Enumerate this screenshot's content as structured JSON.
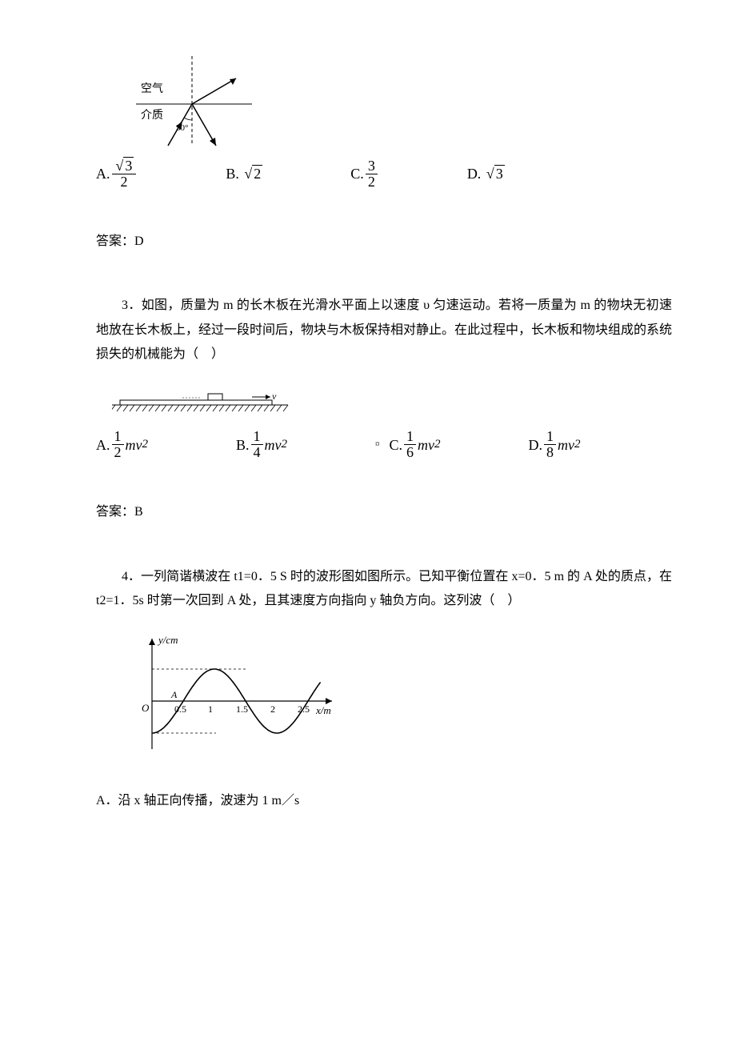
{
  "q2": {
    "diagram": {
      "air_label": "空气",
      "medium_label": "介质",
      "angle_label": "30°",
      "line_color": "#000000",
      "dash_pattern": "4 3"
    },
    "options": {
      "A": {
        "label": "A.",
        "numer": "√3",
        "denom": "2"
      },
      "B": {
        "label": "B.",
        "value": "√2"
      },
      "C": {
        "label": "C.",
        "numer": "3",
        "denom": "2"
      },
      "D": {
        "label": "D.",
        "value": "√3"
      }
    },
    "answer": "答案：D"
  },
  "q3": {
    "number": "3．",
    "text": "如图，质量为 m 的长木板在光滑水平面上以速度 υ 匀速运动。若将一质量为 m 的物块无初速地放在长木板上，经过一段时间后，物块与木板保持相对静止。在此过程中，长木板和物块组成的系统损失的机械能为（　）",
    "diagram": {
      "arrow_label": "v",
      "line_color": "#000000"
    },
    "options": {
      "A": {
        "label": "A.",
        "coef_numer": "1",
        "coef_denom": "2",
        "tail": "mv",
        "sup": "2"
      },
      "B": {
        "label": "B.",
        "coef_numer": "1",
        "coef_denom": "4",
        "tail": "mv",
        "sup": "2"
      },
      "C": {
        "label": "C.",
        "coef_numer": "1",
        "coef_denom": "6",
        "tail": "mv",
        "sup": "2"
      },
      "D": {
        "label": "D.",
        "coef_numer": "1",
        "coef_denom": "8",
        "tail": "mv",
        "sup": "2"
      }
    },
    "answer": "答案：B"
  },
  "q4": {
    "number": "4．",
    "text": "一列简谐横波在 t1=0．5 S 时的波形图如图所示。已知平衡位置在 x=0．5 m 的 A 处的质点，在 t2=1．5s 时第一次回到 A 处，且其速度方向指向 y 轴负方向。这列波（　）",
    "diagram": {
      "y_label": "y/cm",
      "x_label": "x/m",
      "origin_label": "O",
      "a_label": "A",
      "x_ticks": [
        "0.5",
        "1",
        "1.5",
        "2",
        "2.5"
      ],
      "wavelength": 2.0,
      "amplitude": 1.0,
      "x_range": [
        0,
        2.7
      ],
      "line_color": "#000000",
      "dash_pattern": "3 3",
      "phase_shift": -0.5
    },
    "optionA": "A．沿 x 轴正向传播，波速为 1 m／s"
  },
  "colors": {
    "text": "#000000",
    "bg": "#ffffff"
  }
}
